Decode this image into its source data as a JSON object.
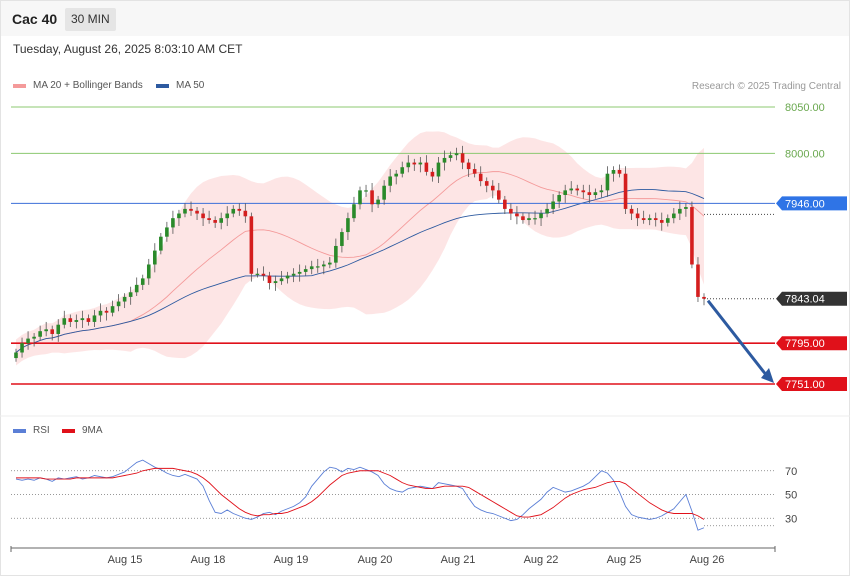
{
  "header": {
    "title": "Cac 40",
    "timeframe": "30 MIN"
  },
  "timestamp": "Tuesday, August 26, 2025 8:03:10 AM CET",
  "copyright": "Research © 2025 Trading Central",
  "legend": [
    {
      "label": "MA 20 + Bollinger Bands",
      "color": "#f49a9a"
    },
    {
      "label": "MA 50",
      "color": "#2d5aa0"
    }
  ],
  "rsi_legend": [
    {
      "label": "RSI",
      "color": "#5b7fd6"
    },
    {
      "label": "9MA",
      "color": "#e0111a"
    }
  ],
  "colors": {
    "up": "#2a8a2a",
    "down": "#d41e1e",
    "level_green": "#8cc870",
    "level_blue": "#3c6fd8",
    "level_red": "#e0111a",
    "arrow": "#2d5aa0"
  },
  "chart_data": [
    {
      "type": "candlestick",
      "title": "",
      "x_tick_labels": [
        "Aug 15",
        "Aug 18",
        "Aug 19",
        "Aug 20",
        "Aug 21",
        "Aug 22",
        "Aug 25",
        "Aug 26"
      ],
      "levels": [
        {
          "value": 8050.0,
          "label": "8050.00",
          "kind": "resistance"
        },
        {
          "value": 8000.0,
          "label": "8000.00",
          "kind": "resistance"
        },
        {
          "value": 7946.0,
          "label": "7946.00",
          "kind": "pivot"
        },
        {
          "value": 7843.04,
          "label": "7843.04",
          "kind": "last"
        },
        {
          "value": 7795.0,
          "label": "7795.00",
          "kind": "support"
        },
        {
          "value": 7751.0,
          "label": "7751.00",
          "kind": "support"
        }
      ],
      "close": [
        7785,
        7795,
        7800,
        7802,
        7808,
        7810,
        7805,
        7815,
        7822,
        7818,
        7820,
        7822,
        7818,
        7825,
        7830,
        7828,
        7835,
        7840,
        7845,
        7850,
        7858,
        7865,
        7880,
        7895,
        7910,
        7920,
        7930,
        7935,
        7940,
        7938,
        7935,
        7930,
        7928,
        7925,
        7930,
        7935,
        7940,
        7938,
        7932,
        7870,
        7870,
        7868,
        7860,
        7862,
        7865,
        7868,
        7870,
        7872,
        7875,
        7878,
        7878,
        7880,
        7882,
        7900,
        7915,
        7930,
        7945,
        7960,
        7960,
        7945,
        7950,
        7965,
        7975,
        7978,
        7985,
        7990,
        7988,
        7990,
        7980,
        7975,
        7990,
        7995,
        7998,
        8000,
        7990,
        7983,
        7978,
        7970,
        7965,
        7960,
        7950,
        7940,
        7935,
        7932,
        7928,
        7930,
        7930,
        7935,
        7940,
        7948,
        7955,
        7960,
        7962,
        7960,
        7958,
        7955,
        7958,
        7960,
        7978,
        7982,
        7978,
        7940,
        7935,
        7930,
        7928,
        7930,
        7928,
        7925,
        7930,
        7935,
        7940,
        7942,
        7880,
        7845,
        7843.04
      ],
      "ylim": [
        7730,
        8060
      ]
    },
    {
      "type": "line",
      "title": "",
      "series": [
        {
          "name": "RSI",
          "values": [
            63,
            62,
            63,
            62,
            64,
            63,
            61,
            64,
            63,
            64,
            65,
            63,
            64,
            66,
            65,
            64,
            65,
            67,
            69,
            73,
            77,
            79,
            76,
            73,
            71,
            68,
            66,
            65,
            67,
            65,
            63,
            57,
            45,
            35,
            34,
            37,
            34,
            32,
            30,
            29,
            31,
            34,
            35,
            33,
            36,
            38,
            40,
            43,
            48,
            57,
            63,
            69,
            73,
            72,
            69,
            72,
            71,
            73,
            71,
            69,
            66,
            59,
            55,
            53,
            52,
            55,
            56,
            57,
            56,
            55,
            60,
            59,
            58,
            57,
            55,
            47,
            40,
            37,
            35,
            34,
            32,
            30,
            28,
            29,
            33,
            38,
            42,
            46,
            52,
            56,
            54,
            52,
            53,
            55,
            57,
            60,
            65,
            70,
            68,
            62,
            52,
            40,
            33,
            31,
            30,
            29,
            30,
            32,
            35,
            38,
            44,
            50,
            36,
            20,
            22
          ]
        },
        {
          "name": "9MA",
          "values": [
            64,
            64,
            64,
            64,
            64,
            63,
            63,
            63,
            63,
            63,
            64,
            64,
            64,
            64,
            64,
            64,
            64,
            65,
            66,
            67,
            68,
            70,
            71,
            72,
            72,
            72,
            72,
            71,
            70,
            69,
            67,
            64,
            60,
            55,
            50,
            46,
            42,
            38,
            35,
            33,
            32,
            33,
            33,
            34,
            34,
            35,
            37,
            39,
            41,
            44,
            48,
            53,
            58,
            62,
            66,
            68,
            69,
            70,
            70,
            70,
            70,
            68,
            66,
            63,
            60,
            58,
            57,
            56,
            55,
            55,
            56,
            57,
            57,
            57,
            57,
            56,
            53,
            50,
            47,
            44,
            41,
            38,
            35,
            32,
            31,
            31,
            32,
            33,
            36,
            39,
            43,
            47,
            50,
            52,
            54,
            55,
            56,
            58,
            60,
            61,
            61,
            59,
            55,
            51,
            47,
            43,
            40,
            37,
            35,
            34,
            34,
            34,
            34,
            32,
            29
          ]
        }
      ],
      "y_tick_labels": [
        "70",
        "50",
        "30"
      ],
      "ylim": [
        10,
        90
      ]
    }
  ]
}
